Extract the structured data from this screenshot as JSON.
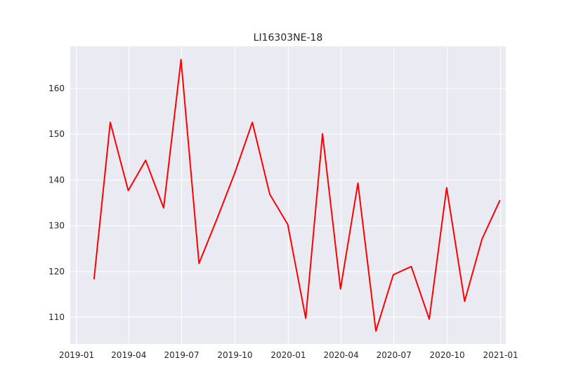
{
  "chart_data": {
    "type": "line",
    "title": "LI16303NE-18",
    "xlabel": "",
    "ylabel": "",
    "grid": true,
    "background_color": "#EAEAF2",
    "grid_color": "#FFFFFF",
    "line_color": "#FF0000",
    "xlim": [
      "2018-12-21",
      "2021-01-10"
    ],
    "ylim": [
      104.2,
      169.2
    ],
    "x_ticks": [
      {
        "date": "2019-01-01",
        "label": "2019-01"
      },
      {
        "date": "2019-04-01",
        "label": "2019-04"
      },
      {
        "date": "2019-07-01",
        "label": "2019-07"
      },
      {
        "date": "2019-10-01",
        "label": "2019-10"
      },
      {
        "date": "2020-01-01",
        "label": "2020-01"
      },
      {
        "date": "2020-04-01",
        "label": "2020-04"
      },
      {
        "date": "2020-07-01",
        "label": "2020-07"
      },
      {
        "date": "2020-10-01",
        "label": "2020-10"
      },
      {
        "date": "2021-01-01",
        "label": "2021-01"
      }
    ],
    "y_ticks": [
      110,
      120,
      130,
      140,
      150,
      160
    ],
    "series": [
      {
        "x": [
          "2019-01-31",
          "2019-02-28",
          "2019-03-31",
          "2019-04-30",
          "2019-05-31",
          "2019-06-30",
          "2019-07-31",
          "2019-08-31",
          "2019-09-30",
          "2019-10-31",
          "2019-11-30",
          "2019-12-31",
          "2020-01-31",
          "2020-02-29",
          "2020-03-31",
          "2020-04-30",
          "2020-05-31",
          "2020-06-30",
          "2020-07-31",
          "2020-08-31",
          "2020-09-30",
          "2020-10-31",
          "2020-11-30",
          "2020-12-31"
        ],
        "values": [
          118.3,
          152.6,
          137.7,
          144.3,
          133.9,
          166.3,
          121.8,
          131.5,
          141.3,
          152.6,
          136.9,
          130.3,
          109.8,
          150.1,
          116.2,
          139.3,
          107.0,
          119.3,
          121.1,
          109.6,
          138.3,
          113.5,
          127.1,
          135.6
        ]
      }
    ]
  }
}
